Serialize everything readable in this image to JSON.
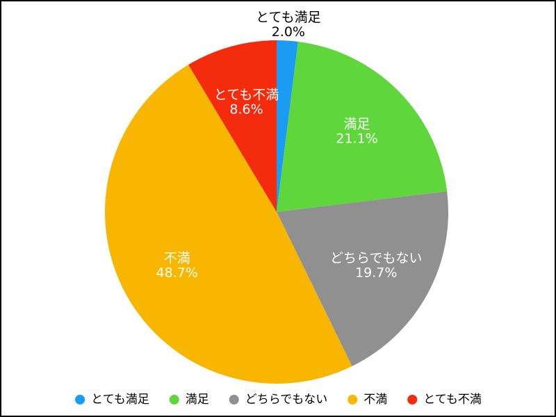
{
  "chart_data": {
    "type": "pie",
    "categories": [
      "とても満足",
      "満足",
      "どちらでもない",
      "不満",
      "とても不満"
    ],
    "values": [
      2.0,
      21.1,
      19.7,
      48.7,
      8.6
    ],
    "value_labels": [
      "2.0%",
      "21.1%",
      "19.7%",
      "48.7%",
      "8.6%"
    ],
    "colors": [
      "#1a9cf2",
      "#5fd63c",
      "#909090",
      "#f8b600",
      "#f52b0d"
    ],
    "legend": "bottom"
  }
}
